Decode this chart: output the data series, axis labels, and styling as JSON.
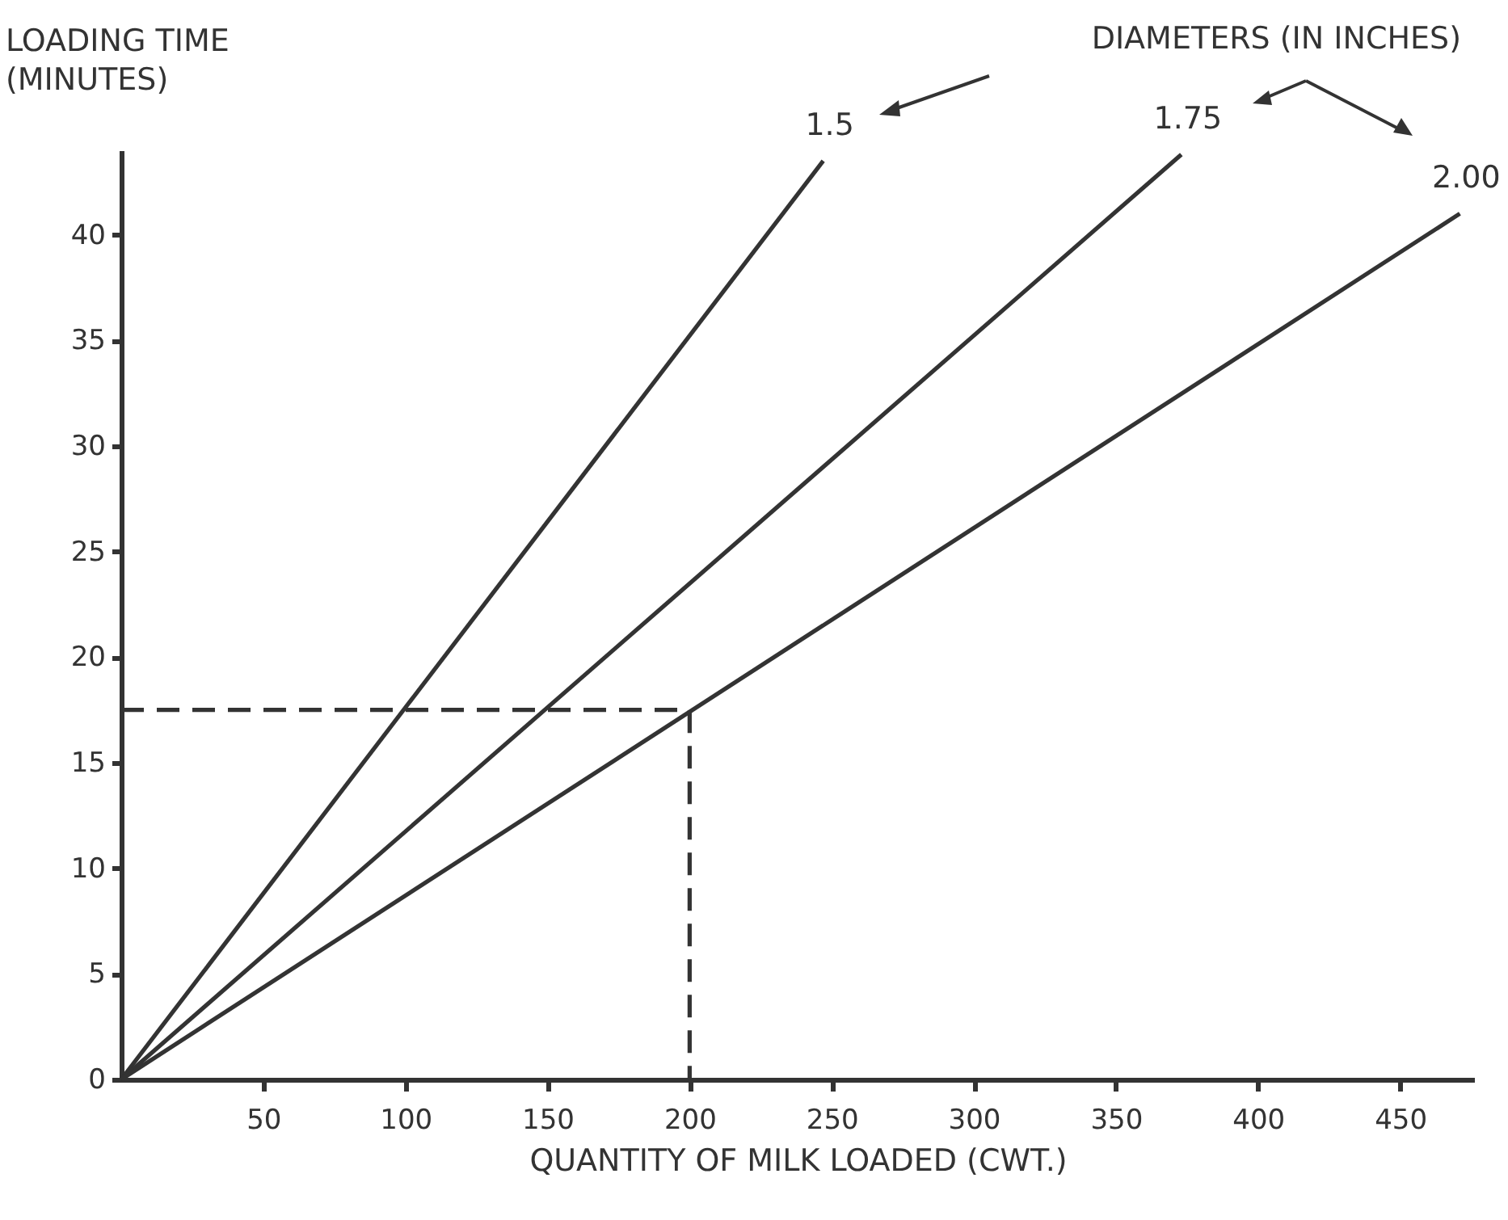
{
  "chart_data": {
    "type": "line",
    "xlabel": "QUANTITY OF MILK LOADED (CWT.)",
    "ylabel": "LOADING TIME\n(MINUTES)",
    "legend_title": "DIAMETERS (IN INCHES)",
    "xlim": [
      0,
      476
    ],
    "ylim": [
      0,
      44
    ],
    "xticks": [
      50,
      100,
      150,
      200,
      250,
      300,
      350,
      400,
      450
    ],
    "yticks": [
      0,
      5,
      10,
      15,
      20,
      25,
      30,
      35,
      40
    ],
    "grid": false,
    "line_style": "solid",
    "legend": "top right",
    "series": [
      {
        "name": "1.5",
        "color": "#333333",
        "x": [
          0,
          247
        ],
        "values": [
          0,
          43.5
        ]
      },
      {
        "name": "1.75",
        "color": "#333333",
        "x": [
          0,
          373
        ],
        "values": [
          0,
          43.8
        ]
      },
      {
        "name": "2.00",
        "color": "#333333",
        "x": [
          0,
          471
        ],
        "values": [
          0,
          41
        ]
      },
      {
        "color": "#333333",
        "x": [
          0,
          200,
          200
        ],
        "values": [
          17.5,
          17.5,
          0
        ],
        "line_style": "dashed"
      }
    ]
  }
}
